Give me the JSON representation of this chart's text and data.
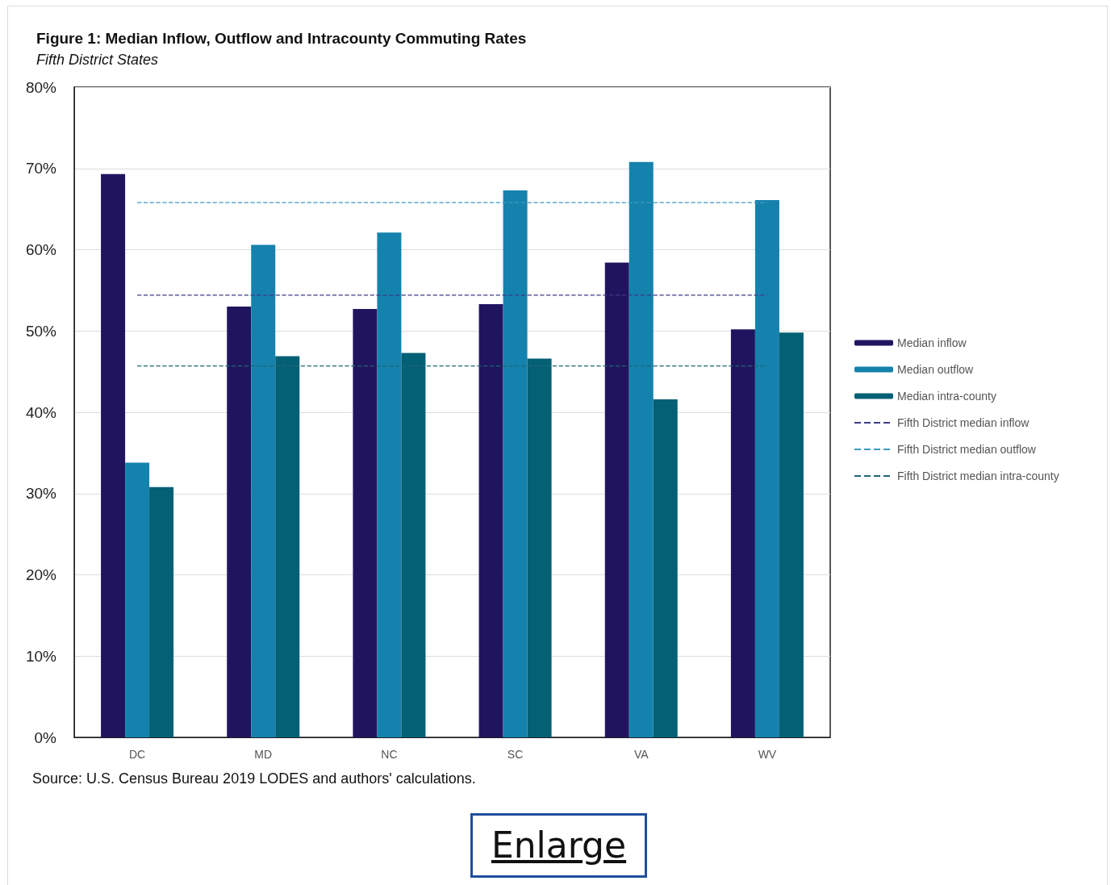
{
  "chart_data": {
    "type": "bar",
    "title": "Figure 1: Median Inflow, Outflow and Intracounty Commuting Rates",
    "subtitle": "Fifth District States",
    "categories": [
      "DC",
      "MD",
      "NC",
      "SC",
      "VA",
      "WV"
    ],
    "series": [
      {
        "name": "Median inflow",
        "color": "#21145f",
        "values": [
          69.3,
          53.0,
          52.7,
          53.3,
          58.4,
          50.2
        ]
      },
      {
        "name": "Median outflow",
        "color": "#1582ad",
        "values": [
          33.8,
          60.6,
          62.1,
          67.3,
          70.8,
          66.1
        ]
      },
      {
        "name": "Median intra-county",
        "color": "#046075",
        "values": [
          30.8,
          46.9,
          47.3,
          46.6,
          41.6,
          49.8
        ]
      },
      {
        "name": "Fifth District median inflow",
        "type": "line",
        "color": "#3b3b85",
        "line_style": "dashed",
        "values": [
          54.4,
          54.4,
          54.4,
          54.4,
          54.4,
          54.4
        ]
      },
      {
        "name": "Fifth District median outflow",
        "type": "line",
        "color": "#3a9cbf",
        "line_style": "dashed",
        "values": [
          65.8,
          65.8,
          65.8,
          65.8,
          65.8,
          65.8
        ]
      },
      {
        "name": "Fifth District median intra-county",
        "type": "line",
        "color": "#1d6675",
        "line_style": "dashed",
        "values": [
          45.7,
          45.7,
          45.7,
          45.7,
          45.7,
          45.7
        ]
      }
    ],
    "ylim": [
      0,
      80
    ],
    "yticks": [
      {
        "value": 0,
        "label": "0%"
      },
      {
        "value": 10,
        "label": "10%"
      },
      {
        "value": 20,
        "label": "20%"
      },
      {
        "value": 30,
        "label": "30%"
      },
      {
        "value": 40,
        "label": "40%"
      },
      {
        "value": 50,
        "label": "50%"
      },
      {
        "value": 60,
        "label": "60%"
      },
      {
        "value": 70,
        "label": "70%"
      },
      {
        "value": 80,
        "label": "80%"
      }
    ],
    "grid": "y",
    "legend": "right",
    "marker": "none",
    "annotations": [
      "Source: U.S. Census Bureau 2019 LODES and authors' calculations.",
      "Enlarge"
    ]
  }
}
